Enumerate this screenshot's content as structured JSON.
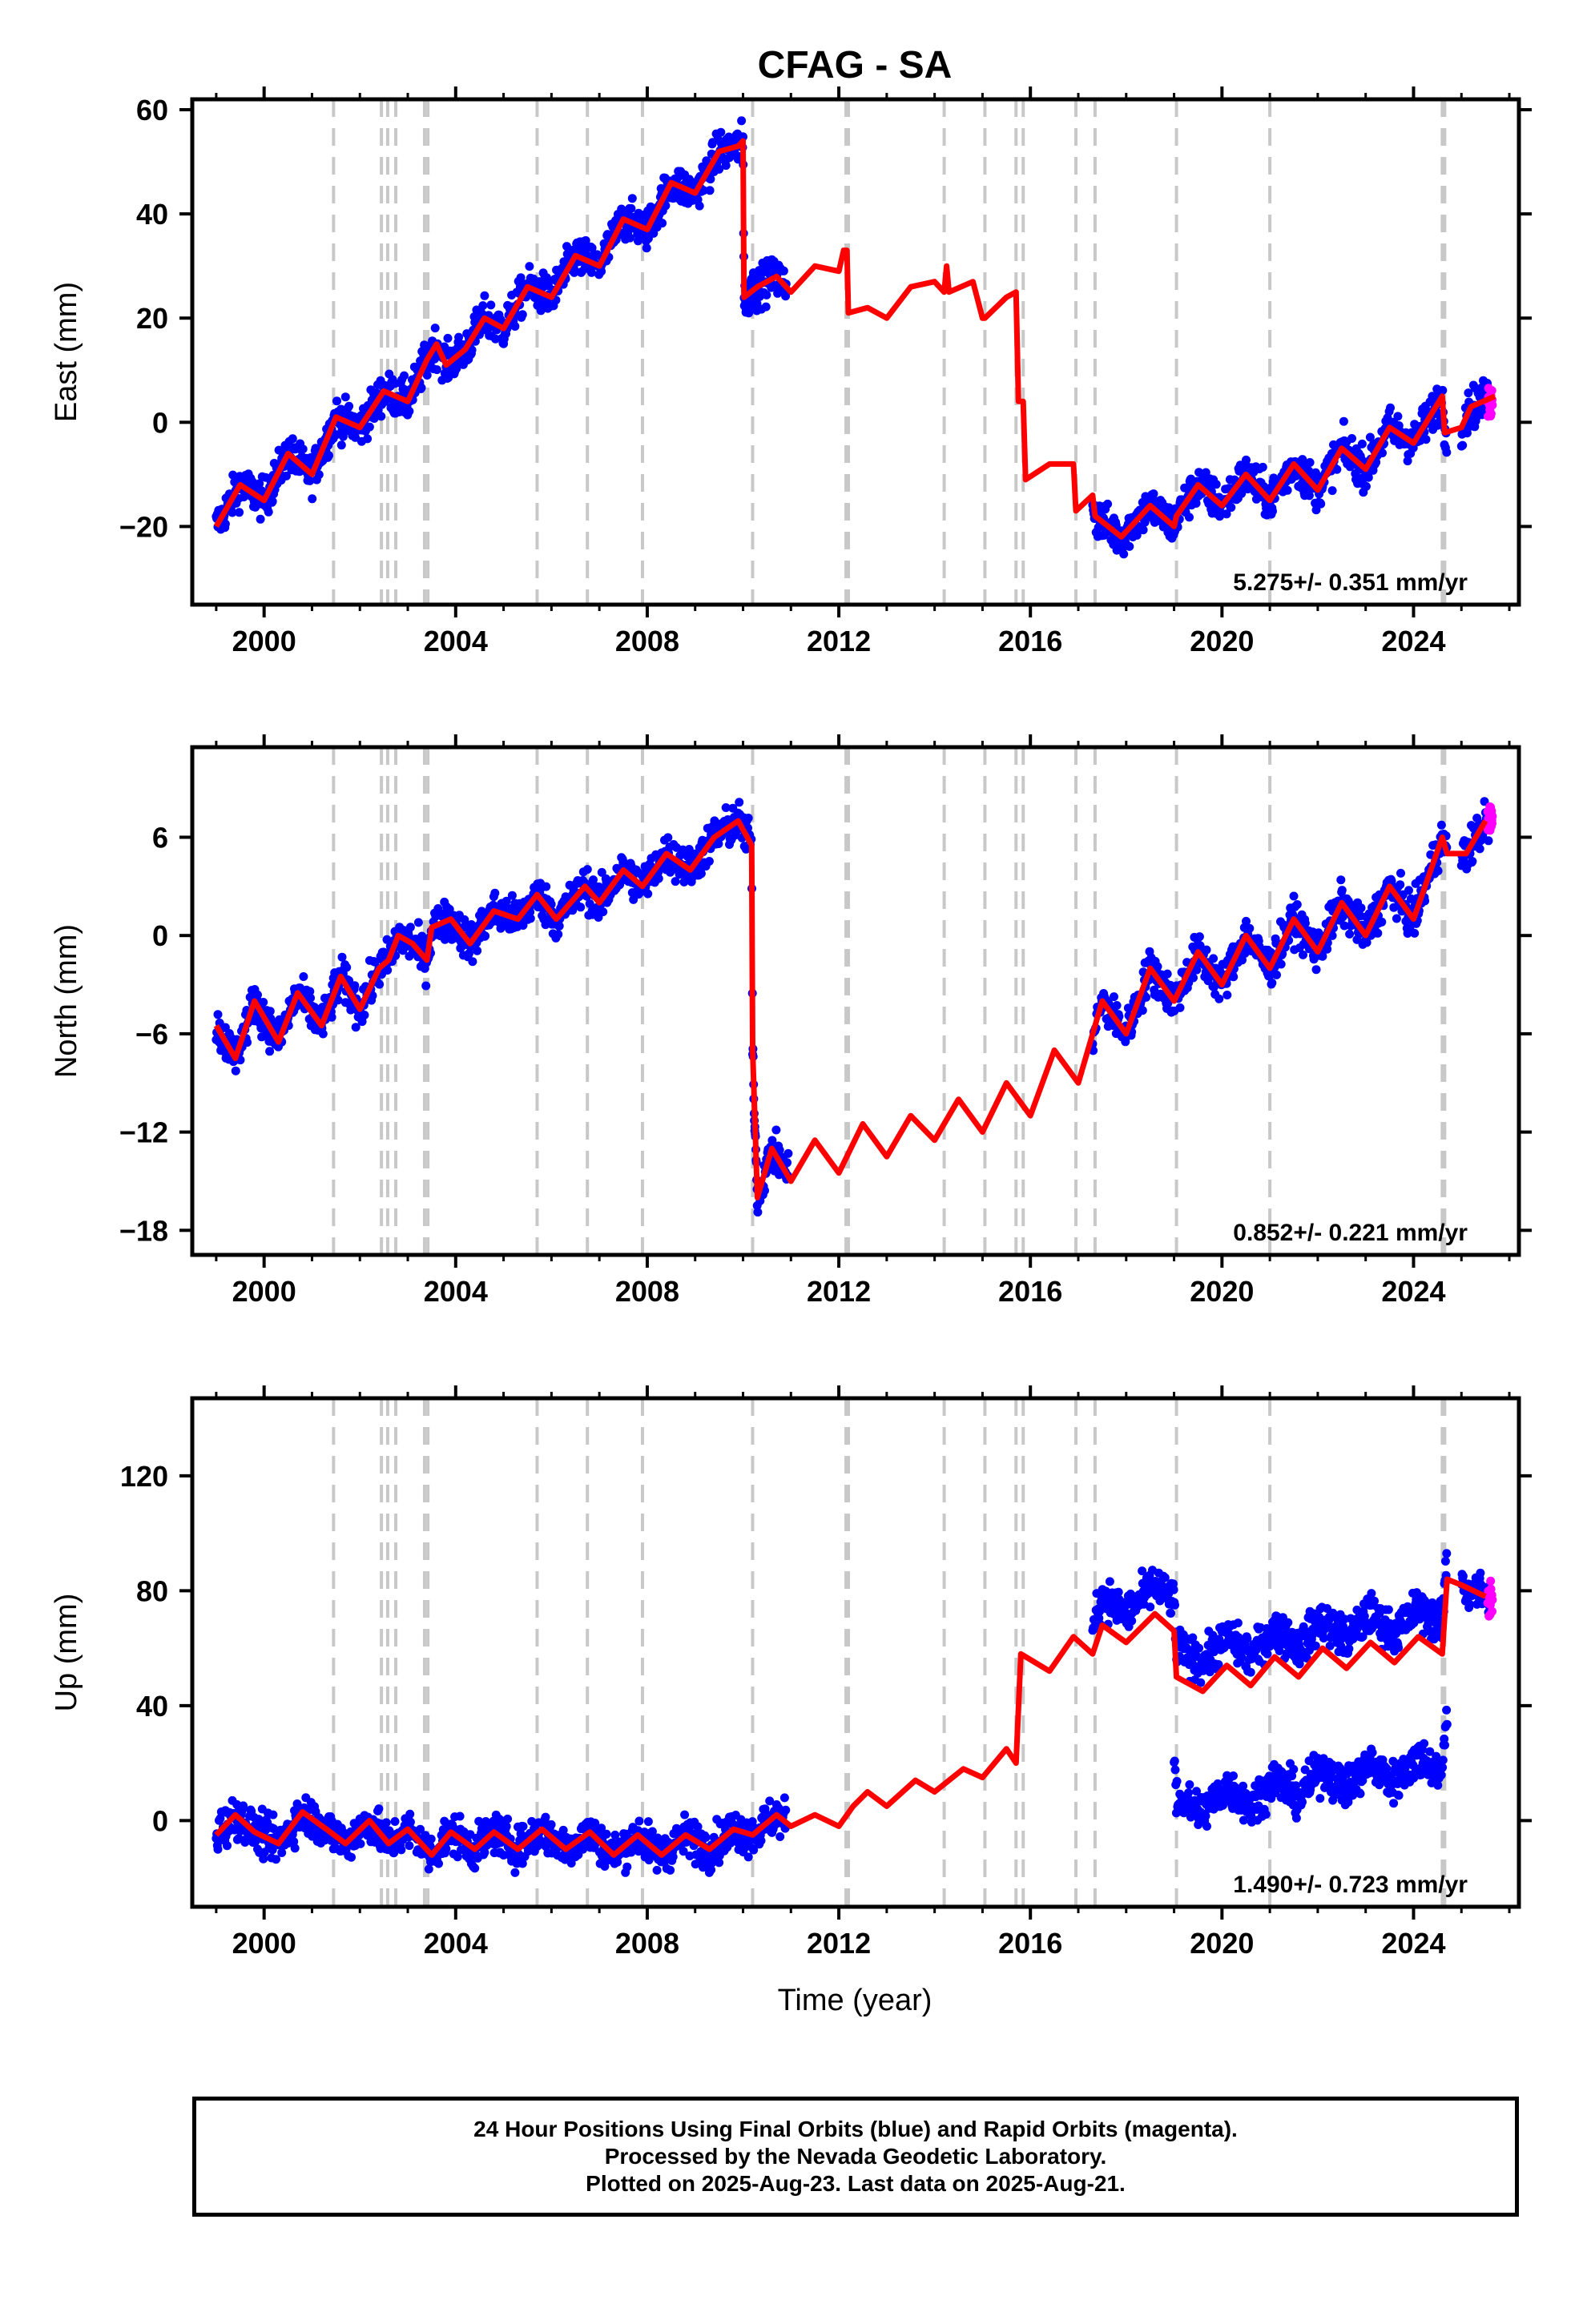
{
  "chart_data": {
    "type": "scatter",
    "title": "CFAG - SA",
    "xlabel": "Time (year)",
    "x_ticks": [
      2000,
      2004,
      2008,
      2012,
      2016,
      2020,
      2024
    ],
    "xlim": [
      1998.5,
      2026.2
    ],
    "reference_lines_years": [
      2001.45,
      2002.45,
      2002.58,
      2002.75,
      2003.35,
      2003.42,
      2005.7,
      2006.75,
      2007.9,
      2010.2,
      2012.15,
      2012.2,
      2014.2,
      2015.05,
      2015.7,
      2015.85,
      2016.95,
      2017.35,
      2019.05,
      2021.0,
      2024.6,
      2024.65
    ],
    "series_colors": {
      "final_orbits": "#0000ff",
      "rapid_orbits": "#ff00ff",
      "model": "#ff0000",
      "reference_lines": "#c8c8c8"
    },
    "panels": [
      {
        "ylabel": "East (mm)",
        "ylim": [
          -35,
          62
        ],
        "y_ticks": [
          -20,
          0,
          20,
          40,
          60
        ],
        "rate_label": "5.275+/- 0.351 mm/yr",
        "model": [
          [
            1999.0,
            -20
          ],
          [
            1999.5,
            -12
          ],
          [
            2000.0,
            -15
          ],
          [
            2000.5,
            -6
          ],
          [
            2001.0,
            -10
          ],
          [
            2001.5,
            1
          ],
          [
            2002.0,
            -1
          ],
          [
            2002.5,
            6
          ],
          [
            2003.0,
            4
          ],
          [
            2003.4,
            12
          ],
          [
            2003.6,
            15
          ],
          [
            2003.8,
            11
          ],
          [
            2004.2,
            14
          ],
          [
            2004.6,
            20
          ],
          [
            2005.0,
            18
          ],
          [
            2005.5,
            26
          ],
          [
            2006.0,
            24
          ],
          [
            2006.5,
            32
          ],
          [
            2007.0,
            30
          ],
          [
            2007.5,
            39
          ],
          [
            2008.0,
            37
          ],
          [
            2008.5,
            46
          ],
          [
            2009.0,
            44
          ],
          [
            2009.5,
            52
          ],
          [
            2009.9,
            53
          ],
          [
            2010.0,
            54
          ],
          [
            2010.02,
            24
          ],
          [
            2010.3,
            26
          ],
          [
            2010.7,
            28
          ],
          [
            2011.0,
            25
          ],
          [
            2011.5,
            30
          ],
          [
            2012.0,
            29
          ],
          [
            2012.1,
            33
          ],
          [
            2012.17,
            33
          ],
          [
            2012.2,
            21
          ],
          [
            2012.6,
            22
          ],
          [
            2013.0,
            20
          ],
          [
            2013.5,
            26
          ],
          [
            2014.0,
            27
          ],
          [
            2014.2,
            25
          ],
          [
            2014.25,
            30
          ],
          [
            2014.3,
            25
          ],
          [
            2014.8,
            27
          ],
          [
            2015.0,
            20
          ],
          [
            2015.05,
            20
          ],
          [
            2015.5,
            24
          ],
          [
            2015.7,
            25
          ],
          [
            2015.75,
            4
          ],
          [
            2015.85,
            4
          ],
          [
            2015.9,
            -11
          ],
          [
            2016.4,
            -8
          ],
          [
            2016.9,
            -8
          ],
          [
            2016.95,
            -17
          ],
          [
            2017.3,
            -14
          ],
          [
            2017.35,
            -18
          ],
          [
            2017.9,
            -22
          ],
          [
            2018.5,
            -16
          ],
          [
            2019.0,
            -20
          ],
          [
            2019.05,
            -18
          ],
          [
            2019.5,
            -12
          ],
          [
            2020.0,
            -16
          ],
          [
            2020.5,
            -10
          ],
          [
            2021.0,
            -15
          ],
          [
            2021.5,
            -8
          ],
          [
            2022.0,
            -13
          ],
          [
            2022.5,
            -5
          ],
          [
            2023.0,
            -9
          ],
          [
            2023.5,
            -1
          ],
          [
            2024.0,
            -4
          ],
          [
            2024.6,
            5
          ],
          [
            2024.65,
            -2
          ],
          [
            2025.0,
            -1
          ],
          [
            2025.2,
            3
          ],
          [
            2025.7,
            5
          ]
        ],
        "data_segments": [
          [
            1999.0,
            2010.35
          ],
          [
            2010.0,
            2010.9
          ],
          [
            2017.3,
            2024.7
          ],
          [
            2025.0,
            2025.6
          ]
        ],
        "rapid_segment": [
          2025.55,
          2025.65
        ]
      },
      {
        "ylabel": "North (mm)",
        "ylim": [
          -19.5,
          11.5
        ],
        "y_ticks": [
          -18,
          -12,
          -6,
          0,
          6
        ],
        "rate_label": "0.852+/- 0.221 mm/yr",
        "model": [
          [
            1999.0,
            -5.5
          ],
          [
            1999.4,
            -7.5
          ],
          [
            1999.8,
            -4
          ],
          [
            2000.3,
            -6.5
          ],
          [
            2000.7,
            -3.5
          ],
          [
            2001.2,
            -5.5
          ],
          [
            2001.6,
            -2.5
          ],
          [
            2002.0,
            -4.5
          ],
          [
            2002.4,
            -2
          ],
          [
            2002.6,
            -1.5
          ],
          [
            2002.8,
            0
          ],
          [
            2003.1,
            -0.5
          ],
          [
            2003.4,
            -1.5
          ],
          [
            2003.5,
            0.5
          ],
          [
            2003.9,
            1
          ],
          [
            2004.3,
            -0.5
          ],
          [
            2004.8,
            1.5
          ],
          [
            2005.3,
            1.0
          ],
          [
            2005.7,
            2.5
          ],
          [
            2006.1,
            1
          ],
          [
            2006.7,
            3
          ],
          [
            2007.0,
            2
          ],
          [
            2007.5,
            4
          ],
          [
            2007.9,
            3
          ],
          [
            2008.4,
            5
          ],
          [
            2008.9,
            4
          ],
          [
            2009.4,
            6
          ],
          [
            2009.9,
            7
          ],
          [
            2010.18,
            5.5
          ],
          [
            2010.2,
            -7
          ],
          [
            2010.3,
            -16
          ],
          [
            2010.6,
            -13
          ],
          [
            2011.0,
            -15
          ],
          [
            2011.5,
            -12.5
          ],
          [
            2012.0,
            -14.5
          ],
          [
            2012.5,
            -11.5
          ],
          [
            2013.0,
            -13.5
          ],
          [
            2013.5,
            -11
          ],
          [
            2014.0,
            -12.5
          ],
          [
            2014.5,
            -10
          ],
          [
            2015.0,
            -12
          ],
          [
            2015.5,
            -9
          ],
          [
            2016.0,
            -11
          ],
          [
            2016.5,
            -7
          ],
          [
            2017.0,
            -9
          ],
          [
            2017.5,
            -4
          ],
          [
            2018.0,
            -6
          ],
          [
            2018.5,
            -2
          ],
          [
            2019.0,
            -4
          ],
          [
            2019.5,
            -1
          ],
          [
            2020.0,
            -3
          ],
          [
            2020.5,
            0
          ],
          [
            2021.0,
            -2
          ],
          [
            2021.5,
            1
          ],
          [
            2022.0,
            -1
          ],
          [
            2022.5,
            2
          ],
          [
            2023.0,
            0
          ],
          [
            2023.5,
            3
          ],
          [
            2024.0,
            1
          ],
          [
            2024.6,
            6
          ],
          [
            2024.7,
            5
          ],
          [
            2025.1,
            5
          ],
          [
            2025.5,
            7
          ]
        ],
        "data_segments": [
          [
            1999.0,
            2010.3
          ],
          [
            2010.2,
            2010.95
          ],
          [
            2017.3,
            2024.7
          ],
          [
            2025.0,
            2025.6
          ]
        ],
        "rapid_segment": [
          2025.55,
          2025.65
        ]
      },
      {
        "ylabel": "Up (mm)",
        "ylim": [
          -30,
          147
        ],
        "y_ticks": [
          0,
          40,
          80,
          120
        ],
        "rate_label": "1.490+/- 0.723 mm/yr",
        "model": [
          [
            1999.0,
            -5
          ],
          [
            1999.4,
            2
          ],
          [
            1999.8,
            -4
          ],
          [
            2000.3,
            -8
          ],
          [
            2000.8,
            3
          ],
          [
            2001.3,
            -3
          ],
          [
            2001.7,
            -8
          ],
          [
            2002.2,
            0
          ],
          [
            2002.6,
            -8
          ],
          [
            2003.0,
            -3
          ],
          [
            2003.5,
            -12
          ],
          [
            2003.9,
            -4
          ],
          [
            2004.4,
            -10
          ],
          [
            2004.8,
            -4
          ],
          [
            2005.3,
            -10
          ],
          [
            2005.8,
            -3
          ],
          [
            2006.3,
            -10
          ],
          [
            2006.8,
            -4
          ],
          [
            2007.3,
            -12
          ],
          [
            2007.8,
            -5
          ],
          [
            2008.3,
            -12
          ],
          [
            2008.8,
            -5
          ],
          [
            2009.3,
            -10
          ],
          [
            2009.8,
            -3
          ],
          [
            2010.2,
            -5
          ],
          [
            2010.7,
            2
          ],
          [
            2011.0,
            -2
          ],
          [
            2011.5,
            2
          ],
          [
            2012.0,
            -2
          ],
          [
            2012.3,
            5
          ],
          [
            2012.6,
            10
          ],
          [
            2013.0,
            5
          ],
          [
            2013.6,
            14
          ],
          [
            2014.0,
            10
          ],
          [
            2014.6,
            18
          ],
          [
            2015.0,
            15
          ],
          [
            2015.5,
            25
          ],
          [
            2015.7,
            20
          ],
          [
            2015.8,
            58
          ],
          [
            2016.4,
            52
          ],
          [
            2016.9,
            64
          ],
          [
            2017.3,
            58
          ],
          [
            2017.5,
            68
          ],
          [
            2018.0,
            62
          ],
          [
            2018.6,
            72
          ],
          [
            2019.0,
            66
          ],
          [
            2019.05,
            50
          ],
          [
            2019.6,
            45
          ],
          [
            2020.1,
            54
          ],
          [
            2020.6,
            47
          ],
          [
            2021.1,
            57
          ],
          [
            2021.6,
            50
          ],
          [
            2022.1,
            60
          ],
          [
            2022.6,
            53
          ],
          [
            2023.1,
            62
          ],
          [
            2023.6,
            55
          ],
          [
            2024.1,
            64
          ],
          [
            2024.6,
            58
          ],
          [
            2024.7,
            84
          ],
          [
            2025.0,
            82
          ],
          [
            2025.5,
            78
          ]
        ],
        "data_segments": [
          [
            1999.0,
            2010.9
          ],
          [
            2017.3,
            2024.7
          ],
          [
            2019.0,
            2024.7
          ],
          [
            2025.0,
            2025.6
          ]
        ],
        "rapid_segment": [
          2025.55,
          2025.65
        ]
      }
    ]
  },
  "footer": {
    "line1": "24 Hour Positions Using Final Orbits (blue) and Rapid Orbits (magenta).",
    "line2": "Processed by the Nevada Geodetic Laboratory.",
    "line3": "Plotted on 2025-Aug-23. Last data on 2025-Aug-21."
  }
}
